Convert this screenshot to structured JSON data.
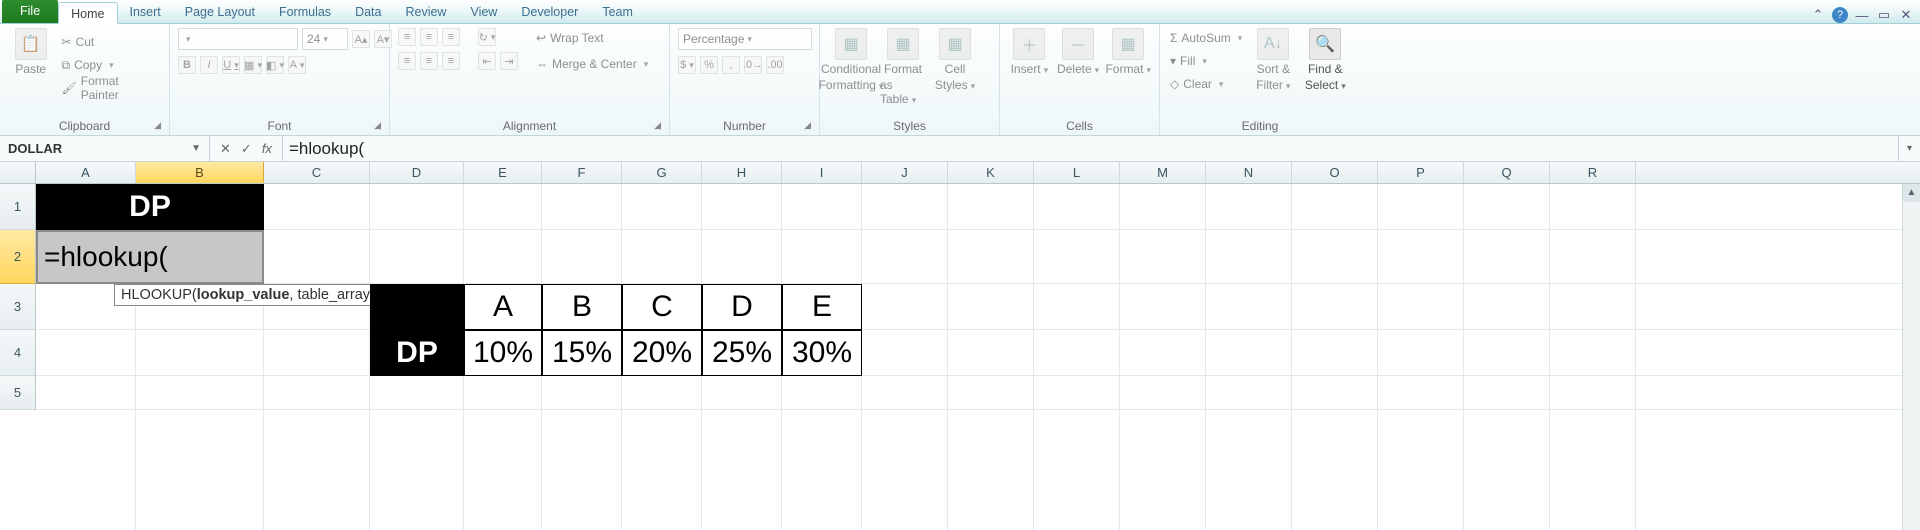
{
  "tabs": {
    "file": "File",
    "list": [
      "Home",
      "Insert",
      "Page Layout",
      "Formulas",
      "Data",
      "Review",
      "View",
      "Developer",
      "Team"
    ],
    "active": "Home"
  },
  "ribbon": {
    "clipboard": {
      "label": "Clipboard",
      "paste": "Paste",
      "cut": "Cut",
      "copy": "Copy",
      "fmtpainter": "Format Painter"
    },
    "font": {
      "label": "Font",
      "size": "24",
      "bold": "B",
      "italic": "I",
      "underline": "U"
    },
    "alignment": {
      "label": "Alignment",
      "wrap": "Wrap Text",
      "merge": "Merge & Center"
    },
    "number": {
      "label": "Number",
      "format": "Percentage",
      "cur": "$",
      "pct": "%",
      "comma": ","
    },
    "styles": {
      "label": "Styles",
      "cond": "Conditional",
      "cond2": "Formatting",
      "tbl": "Format",
      "tbl2": "as Table",
      "cell": "Cell",
      "cell2": "Styles"
    },
    "cells": {
      "label": "Cells",
      "insert": "Insert",
      "delete": "Delete",
      "format": "Format"
    },
    "editing": {
      "label": "Editing",
      "autosum": "AutoSum",
      "fill": "Fill",
      "clear": "Clear",
      "sort": "Sort &",
      "sort2": "Filter",
      "find": "Find &",
      "find2": "Select"
    }
  },
  "formula_bar": {
    "name_box": "DOLLAR",
    "formula": "=hlookup("
  },
  "grid": {
    "col_widths": {
      "A": 100,
      "B": 128,
      "C": 106,
      "D": 94,
      "E": 78,
      "F": 80,
      "G": 80,
      "H": 80,
      "I": 80,
      "default": 86
    },
    "row_heights": {
      "1": 46,
      "2": 54,
      "3": 46,
      "4": 46,
      "5": 34
    },
    "columns": [
      "A",
      "B",
      "C",
      "D",
      "E",
      "F",
      "G",
      "H",
      "I",
      "J",
      "K",
      "L",
      "M",
      "N",
      "O",
      "P",
      "Q",
      "R"
    ],
    "rows": [
      "1",
      "2",
      "3",
      "4",
      "5"
    ],
    "active_col": "B",
    "active_row": "2"
  },
  "content": {
    "A1B1": "DP",
    "A2B2": "=hlookup(",
    "tooltip_pre": "HLOOKUP(",
    "tooltip_bold": "lookup_value",
    "tooltip_post": ", table_array, row_index_num, [range_lookup])",
    "D3": "",
    "E3": "A",
    "F3": "B",
    "G3": "C",
    "H3": "D",
    "I3": "E",
    "D4": "DP",
    "E4": "10%",
    "F4": "15%",
    "G4": "20%",
    "H4": "25%",
    "I4": "30%"
  },
  "colors": {
    "black": "#000000",
    "edit_bg": "#c7c7c7"
  }
}
